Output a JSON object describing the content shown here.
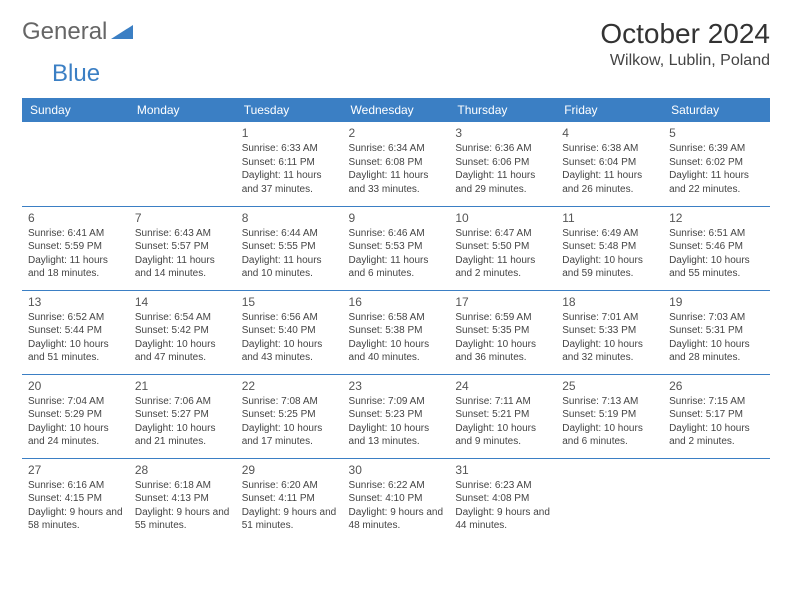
{
  "logo": {
    "word1": "General",
    "word2": "Blue"
  },
  "title": "October 2024",
  "location": "Wilkow, Lublin, Poland",
  "colors": {
    "header_bg": "#3b7fc4",
    "header_text": "#ffffff",
    "text": "#333333",
    "border": "#3b7fc4",
    "logo_gray": "#666666",
    "logo_blue": "#3b7fc4"
  },
  "typography": {
    "title_fontsize": 28,
    "location_fontsize": 16,
    "dayheader_fontsize": 12,
    "daynum_fontsize": 12,
    "dayinfo_fontsize": 10
  },
  "table": {
    "type": "calendar",
    "columns": [
      "Sunday",
      "Monday",
      "Tuesday",
      "Wednesday",
      "Thursday",
      "Friday",
      "Saturday"
    ],
    "rows": [
      [
        null,
        null,
        {
          "day": "1",
          "sunrise": "6:33 AM",
          "sunset": "6:11 PM",
          "daylight": "11 hours and 37 minutes."
        },
        {
          "day": "2",
          "sunrise": "6:34 AM",
          "sunset": "6:08 PM",
          "daylight": "11 hours and 33 minutes."
        },
        {
          "day": "3",
          "sunrise": "6:36 AM",
          "sunset": "6:06 PM",
          "daylight": "11 hours and 29 minutes."
        },
        {
          "day": "4",
          "sunrise": "6:38 AM",
          "sunset": "6:04 PM",
          "daylight": "11 hours and 26 minutes."
        },
        {
          "day": "5",
          "sunrise": "6:39 AM",
          "sunset": "6:02 PM",
          "daylight": "11 hours and 22 minutes."
        }
      ],
      [
        {
          "day": "6",
          "sunrise": "6:41 AM",
          "sunset": "5:59 PM",
          "daylight": "11 hours and 18 minutes."
        },
        {
          "day": "7",
          "sunrise": "6:43 AM",
          "sunset": "5:57 PM",
          "daylight": "11 hours and 14 minutes."
        },
        {
          "day": "8",
          "sunrise": "6:44 AM",
          "sunset": "5:55 PM",
          "daylight": "11 hours and 10 minutes."
        },
        {
          "day": "9",
          "sunrise": "6:46 AM",
          "sunset": "5:53 PM",
          "daylight": "11 hours and 6 minutes."
        },
        {
          "day": "10",
          "sunrise": "6:47 AM",
          "sunset": "5:50 PM",
          "daylight": "11 hours and 2 minutes."
        },
        {
          "day": "11",
          "sunrise": "6:49 AM",
          "sunset": "5:48 PM",
          "daylight": "10 hours and 59 minutes."
        },
        {
          "day": "12",
          "sunrise": "6:51 AM",
          "sunset": "5:46 PM",
          "daylight": "10 hours and 55 minutes."
        }
      ],
      [
        {
          "day": "13",
          "sunrise": "6:52 AM",
          "sunset": "5:44 PM",
          "daylight": "10 hours and 51 minutes."
        },
        {
          "day": "14",
          "sunrise": "6:54 AM",
          "sunset": "5:42 PM",
          "daylight": "10 hours and 47 minutes."
        },
        {
          "day": "15",
          "sunrise": "6:56 AM",
          "sunset": "5:40 PM",
          "daylight": "10 hours and 43 minutes."
        },
        {
          "day": "16",
          "sunrise": "6:58 AM",
          "sunset": "5:38 PM",
          "daylight": "10 hours and 40 minutes."
        },
        {
          "day": "17",
          "sunrise": "6:59 AM",
          "sunset": "5:35 PM",
          "daylight": "10 hours and 36 minutes."
        },
        {
          "day": "18",
          "sunrise": "7:01 AM",
          "sunset": "5:33 PM",
          "daylight": "10 hours and 32 minutes."
        },
        {
          "day": "19",
          "sunrise": "7:03 AM",
          "sunset": "5:31 PM",
          "daylight": "10 hours and 28 minutes."
        }
      ],
      [
        {
          "day": "20",
          "sunrise": "7:04 AM",
          "sunset": "5:29 PM",
          "daylight": "10 hours and 24 minutes."
        },
        {
          "day": "21",
          "sunrise": "7:06 AM",
          "sunset": "5:27 PM",
          "daylight": "10 hours and 21 minutes."
        },
        {
          "day": "22",
          "sunrise": "7:08 AM",
          "sunset": "5:25 PM",
          "daylight": "10 hours and 17 minutes."
        },
        {
          "day": "23",
          "sunrise": "7:09 AM",
          "sunset": "5:23 PM",
          "daylight": "10 hours and 13 minutes."
        },
        {
          "day": "24",
          "sunrise": "7:11 AM",
          "sunset": "5:21 PM",
          "daylight": "10 hours and 9 minutes."
        },
        {
          "day": "25",
          "sunrise": "7:13 AM",
          "sunset": "5:19 PM",
          "daylight": "10 hours and 6 minutes."
        },
        {
          "day": "26",
          "sunrise": "7:15 AM",
          "sunset": "5:17 PM",
          "daylight": "10 hours and 2 minutes."
        }
      ],
      [
        {
          "day": "27",
          "sunrise": "6:16 AM",
          "sunset": "4:15 PM",
          "daylight": "9 hours and 58 minutes."
        },
        {
          "day": "28",
          "sunrise": "6:18 AM",
          "sunset": "4:13 PM",
          "daylight": "9 hours and 55 minutes."
        },
        {
          "day": "29",
          "sunrise": "6:20 AM",
          "sunset": "4:11 PM",
          "daylight": "9 hours and 51 minutes."
        },
        {
          "day": "30",
          "sunrise": "6:22 AM",
          "sunset": "4:10 PM",
          "daylight": "9 hours and 48 minutes."
        },
        {
          "day": "31",
          "sunrise": "6:23 AM",
          "sunset": "4:08 PM",
          "daylight": "9 hours and 44 minutes."
        },
        null,
        null
      ]
    ]
  },
  "labels": {
    "sunrise": "Sunrise:",
    "sunset": "Sunset:",
    "daylight": "Daylight:"
  }
}
